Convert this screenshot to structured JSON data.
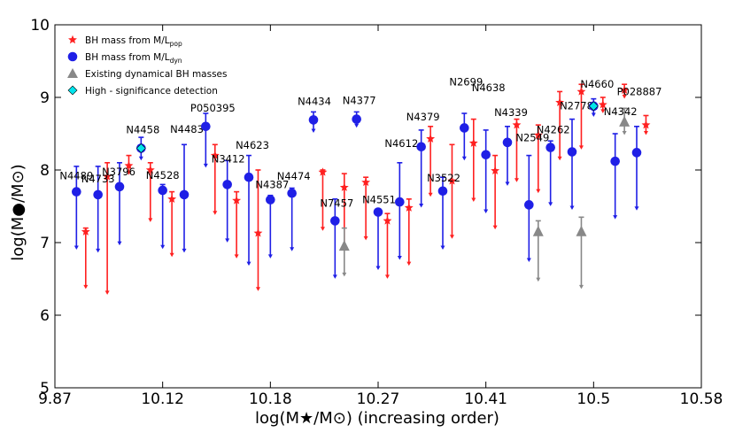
{
  "chart_data": {
    "type": "scatter",
    "xlabel": "log(M★/M⊙) (increasing order)",
    "ylabel": "log(M●/M⊙)",
    "ylim": [
      5,
      10
    ],
    "yticks": [
      "5",
      "6",
      "7",
      "8",
      "9",
      "10"
    ],
    "xtick_labels": [
      "9.87",
      "10.12",
      "10.18",
      "10.27",
      "10.41",
      "10.5",
      "10.58"
    ],
    "slot_count": 30,
    "legend": {
      "position": "top-left",
      "entries": [
        {
          "symbol": "star",
          "color": "#ff2020",
          "label": "BH mass from M/L",
          "sub": "pop"
        },
        {
          "symbol": "circle",
          "color": "#1f1fe6",
          "label": "BH mass from M/L",
          "sub": "dyn"
        },
        {
          "symbol": "triangle",
          "color": "#888888",
          "label": "Existing dynamical BH masses",
          "sub": ""
        },
        {
          "symbol": "diamond",
          "color": "#00e5ee",
          "label": "High - significance detection",
          "sub": ""
        }
      ]
    },
    "galaxies": [
      {
        "name": "N4489",
        "slot": 1,
        "label_dx": 0,
        "label_dy": -14,
        "dyn": [
          7.7,
          6.92,
          8.05
        ],
        "pop": [
          7.15,
          6.38,
          7.2
        ]
      },
      {
        "name": "N4733",
        "slot": 2,
        "label_dx": 0,
        "label_dy": -14,
        "dyn": [
          7.66,
          6.88,
          8.05
        ],
        "pop": [
          7.91,
          6.3,
          8.1
        ]
      },
      {
        "name": "N3796",
        "slot": 3,
        "label_dx": -1,
        "label_dy": -13,
        "dyn": [
          7.77,
          6.98,
          8.1
        ],
        "pop": [
          8.06,
          7.95,
          8.2
        ]
      },
      {
        "name": "N4458",
        "slot": 4,
        "label_dx": 2,
        "label_dy": -17,
        "dyn": [
          8.3,
          8.15,
          8.45
        ],
        "pop": [
          8.0,
          7.3,
          8.1
        ],
        "high_significance": true
      },
      {
        "name": "N4528",
        "slot": 5,
        "label_dx": 0,
        "label_dy": -13,
        "dyn": [
          7.72,
          6.93,
          7.8
        ],
        "pop": [
          7.6,
          6.82,
          7.7
        ]
      },
      {
        "name": "N4483",
        "slot": 6,
        "label_dx": 3,
        "label_dy": -70,
        "dyn": [
          7.66,
          6.88,
          8.35
        ],
        "pop": null
      },
      {
        "name": "P050395",
        "slot": 7,
        "label_dx": 8,
        "label_dy": -17,
        "dyn": [
          8.6,
          8.05,
          8.78
        ],
        "pop": [
          8.2,
          7.4,
          8.35
        ]
      },
      {
        "name": "N3412",
        "slot": 8,
        "label_dx": 1,
        "label_dy": -25,
        "dyn": [
          7.8,
          7.02,
          8.13
        ],
        "pop": [
          7.58,
          6.8,
          7.7
        ]
      },
      {
        "name": "N4623",
        "slot": 9,
        "label_dx": 4,
        "label_dy": -32,
        "dyn": [
          7.9,
          6.7,
          8.2
        ],
        "pop": [
          7.13,
          6.35,
          8.0
        ]
      },
      {
        "name": "N4387",
        "slot": 10,
        "label_dx": 2,
        "label_dy": -13,
        "dyn": [
          7.59,
          6.8,
          7.65
        ],
        "pop": null
      },
      {
        "name": "N4474",
        "slot": 11,
        "label_dx": 2,
        "label_dy": -15,
        "dyn": [
          7.68,
          6.9,
          7.75
        ],
        "pop": null
      },
      {
        "name": "N4434",
        "slot": 12,
        "label_dx": 1,
        "label_dy": -17,
        "dyn": [
          8.69,
          8.53,
          8.8
        ],
        "pop": [
          7.97,
          7.18,
          8.0
        ]
      },
      {
        "name": "N7457",
        "slot": 13,
        "label_dx": 2,
        "label_dy": -16,
        "dyn": [
          7.3,
          6.52,
          7.6
        ],
        "pop": [
          7.76,
          6.9,
          7.95
        ],
        "existing": [
          6.95,
          6.55,
          7.2
        ]
      },
      {
        "name": "N4377",
        "slot": 14,
        "label_dx": 3,
        "label_dy": -17,
        "dyn": [
          8.7,
          8.6,
          8.8
        ],
        "pop": [
          7.83,
          7.05,
          7.9
        ]
      },
      {
        "name": "N4551",
        "slot": 15,
        "label_dx": 1,
        "label_dy": -10,
        "dyn": [
          7.42,
          6.64,
          7.45
        ],
        "pop": [
          7.3,
          6.52,
          7.4
        ]
      },
      {
        "name": "N4612",
        "slot": 16,
        "label_dx": 2,
        "label_dy": -62,
        "dyn": [
          7.56,
          6.78,
          8.1
        ],
        "pop": [
          7.48,
          6.7,
          7.6
        ]
      },
      {
        "name": "N4379",
        "slot": 17,
        "label_dx": 2,
        "label_dy": -30,
        "dyn": [
          8.32,
          7.5,
          8.55
        ],
        "pop": [
          8.43,
          7.65,
          8.6
        ]
      },
      {
        "name": "N3522",
        "slot": 18,
        "label_dx": 1,
        "label_dy": -11,
        "dyn": [
          7.71,
          6.92,
          7.9
        ],
        "pop": [
          7.85,
          7.07,
          8.35
        ]
      },
      {
        "name": "N2699",
        "slot": 19,
        "label_dx": 2,
        "label_dy": -48,
        "dyn": [
          8.58,
          8.15,
          8.78
        ],
        "pop": [
          8.37,
          7.58,
          8.7
        ]
      },
      {
        "name": "N4638",
        "slot": 20,
        "label_dx": 3,
        "label_dy": -72,
        "dyn": [
          8.21,
          7.42,
          8.55
        ],
        "pop": [
          7.99,
          7.2,
          8.2
        ]
      },
      {
        "name": "N4339",
        "slot": 21,
        "label_dx": 4,
        "label_dy": -30,
        "dyn": [
          8.38,
          7.8,
          8.6
        ],
        "pop": [
          8.62,
          7.85,
          8.7
        ]
      },
      {
        "name": "N2549",
        "slot": 22,
        "label_dx": 4,
        "label_dy": -72,
        "dyn": [
          7.52,
          6.75,
          8.2
        ],
        "pop": [
          8.48,
          7.7,
          8.62
        ],
        "existing": [
          7.15,
          6.48,
          7.3
        ]
      },
      {
        "name": "N4262",
        "slot": 23,
        "label_dx": 3,
        "label_dy": -16,
        "dyn": [
          8.31,
          7.52,
          8.4
        ],
        "pop": [
          8.93,
          8.15,
          9.08
        ]
      },
      {
        "name": "N2778",
        "slot": 24,
        "label_dx": 5,
        "label_dy": -48,
        "dyn": [
          8.25,
          7.47,
          8.7
        ],
        "pop": [
          9.08,
          8.3,
          9.18
        ],
        "existing": [
          7.15,
          6.38,
          7.35
        ]
      },
      {
        "name": "N4660",
        "slot": 25,
        "label_dx": 4,
        "label_dy": -21,
        "dyn": [
          8.88,
          8.75,
          8.98
        ],
        "pop": [
          8.9,
          8.8,
          9.0
        ],
        "high_significance": true
      },
      {
        "name": "N4342",
        "slot": 26,
        "label_dx": 6,
        "label_dy": -52,
        "dyn": [
          8.12,
          7.34,
          8.5
        ],
        "pop": [
          9.1,
          9.0,
          9.18
        ],
        "existing": [
          8.66,
          8.5,
          8.85
        ]
      },
      {
        "name": "P028887",
        "slot": 27,
        "label_dx": 3,
        "label_dy": -65,
        "dyn": [
          8.24,
          7.46,
          8.6
        ],
        "pop": [
          8.62,
          8.5,
          8.75
        ]
      }
    ]
  }
}
